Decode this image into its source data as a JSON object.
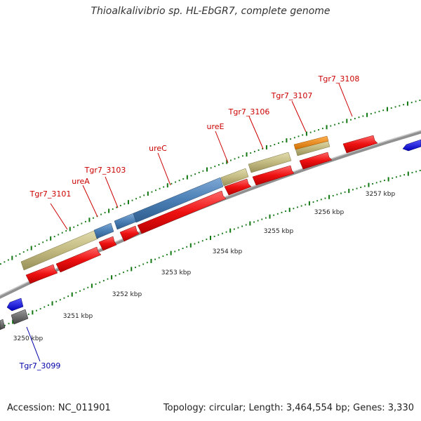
{
  "title": "Thioalkalivibrio sp. HL-EbGR7, complete genome",
  "footer": {
    "accession": "Accession: NC_011901",
    "topology": "Topology: circular; Length: 3,464,554 bp; Genes: 3,330"
  },
  "scale_labels": [
    "3250 kbp",
    "3251 kbp",
    "3252 kbp",
    "3253 kbp",
    "3254 kbp",
    "3255 kbp",
    "3256 kbp",
    "3257 kbp"
  ],
  "gene_labels": [
    {
      "text": "Tgr7_3101",
      "color": "#cc0000"
    },
    {
      "text": "ureA",
      "color": "#cc0000"
    },
    {
      "text": "Tgr7_3103",
      "color": "#cc0000"
    },
    {
      "text": "ureC",
      "color": "#cc0000"
    },
    {
      "text": "ureE",
      "color": "#cc0000"
    },
    {
      "text": "Tgr7_3106",
      "color": "#cc0000"
    },
    {
      "text": "Tgr7_3107",
      "color": "#cc0000"
    },
    {
      "text": "Tgr7_3108",
      "color": "#cc0000"
    },
    {
      "text": "Tgr7_3099",
      "color": "#0000aa"
    }
  ],
  "colors": {
    "cds_forward": "#ee1111",
    "cds_reverse": "#1a1aee",
    "blue_feature": "#4a7fb5",
    "khaki_feature": "#c2ba80",
    "orange_feature": "#f08a10",
    "gray_feature": "#666666",
    "tick_green": "#117711",
    "backbone": "#909090"
  }
}
